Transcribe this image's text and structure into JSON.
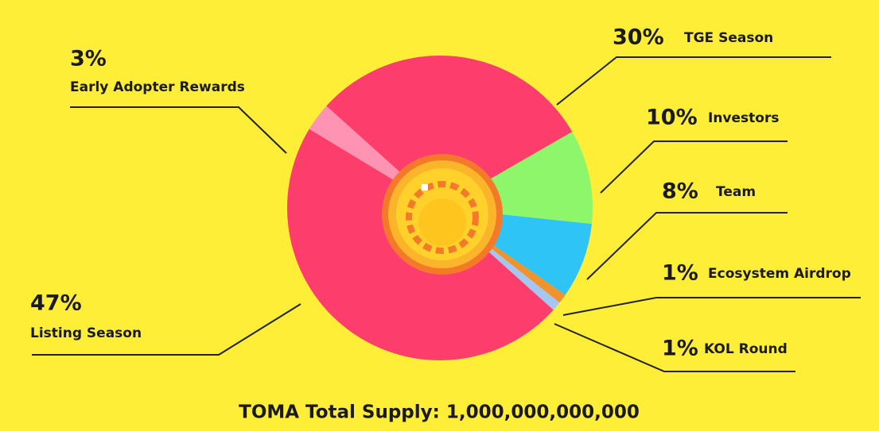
{
  "chart_data": {
    "type": "pie",
    "title": "TOMA Total Supply: 1,000,000,000,000",
    "categories": [
      "Investors",
      "Team",
      "Ecosystem Airdrop",
      "KOL Round",
      "Listing Season",
      "Early Adopter Rewards",
      "TGE Season"
    ],
    "values": [
      10,
      8,
      1,
      1,
      47,
      3,
      30
    ],
    "value_labels": [
      "10%",
      "8%",
      "1%",
      "1%",
      "47%",
      "3%",
      "30%"
    ],
    "colors": [
      "#8ef66a",
      "#2ec4f6",
      "#f0922e",
      "#a6c6f2",
      "#fd3e6c",
      "#ff93b4",
      "#fd3e6c"
    ]
  }
}
